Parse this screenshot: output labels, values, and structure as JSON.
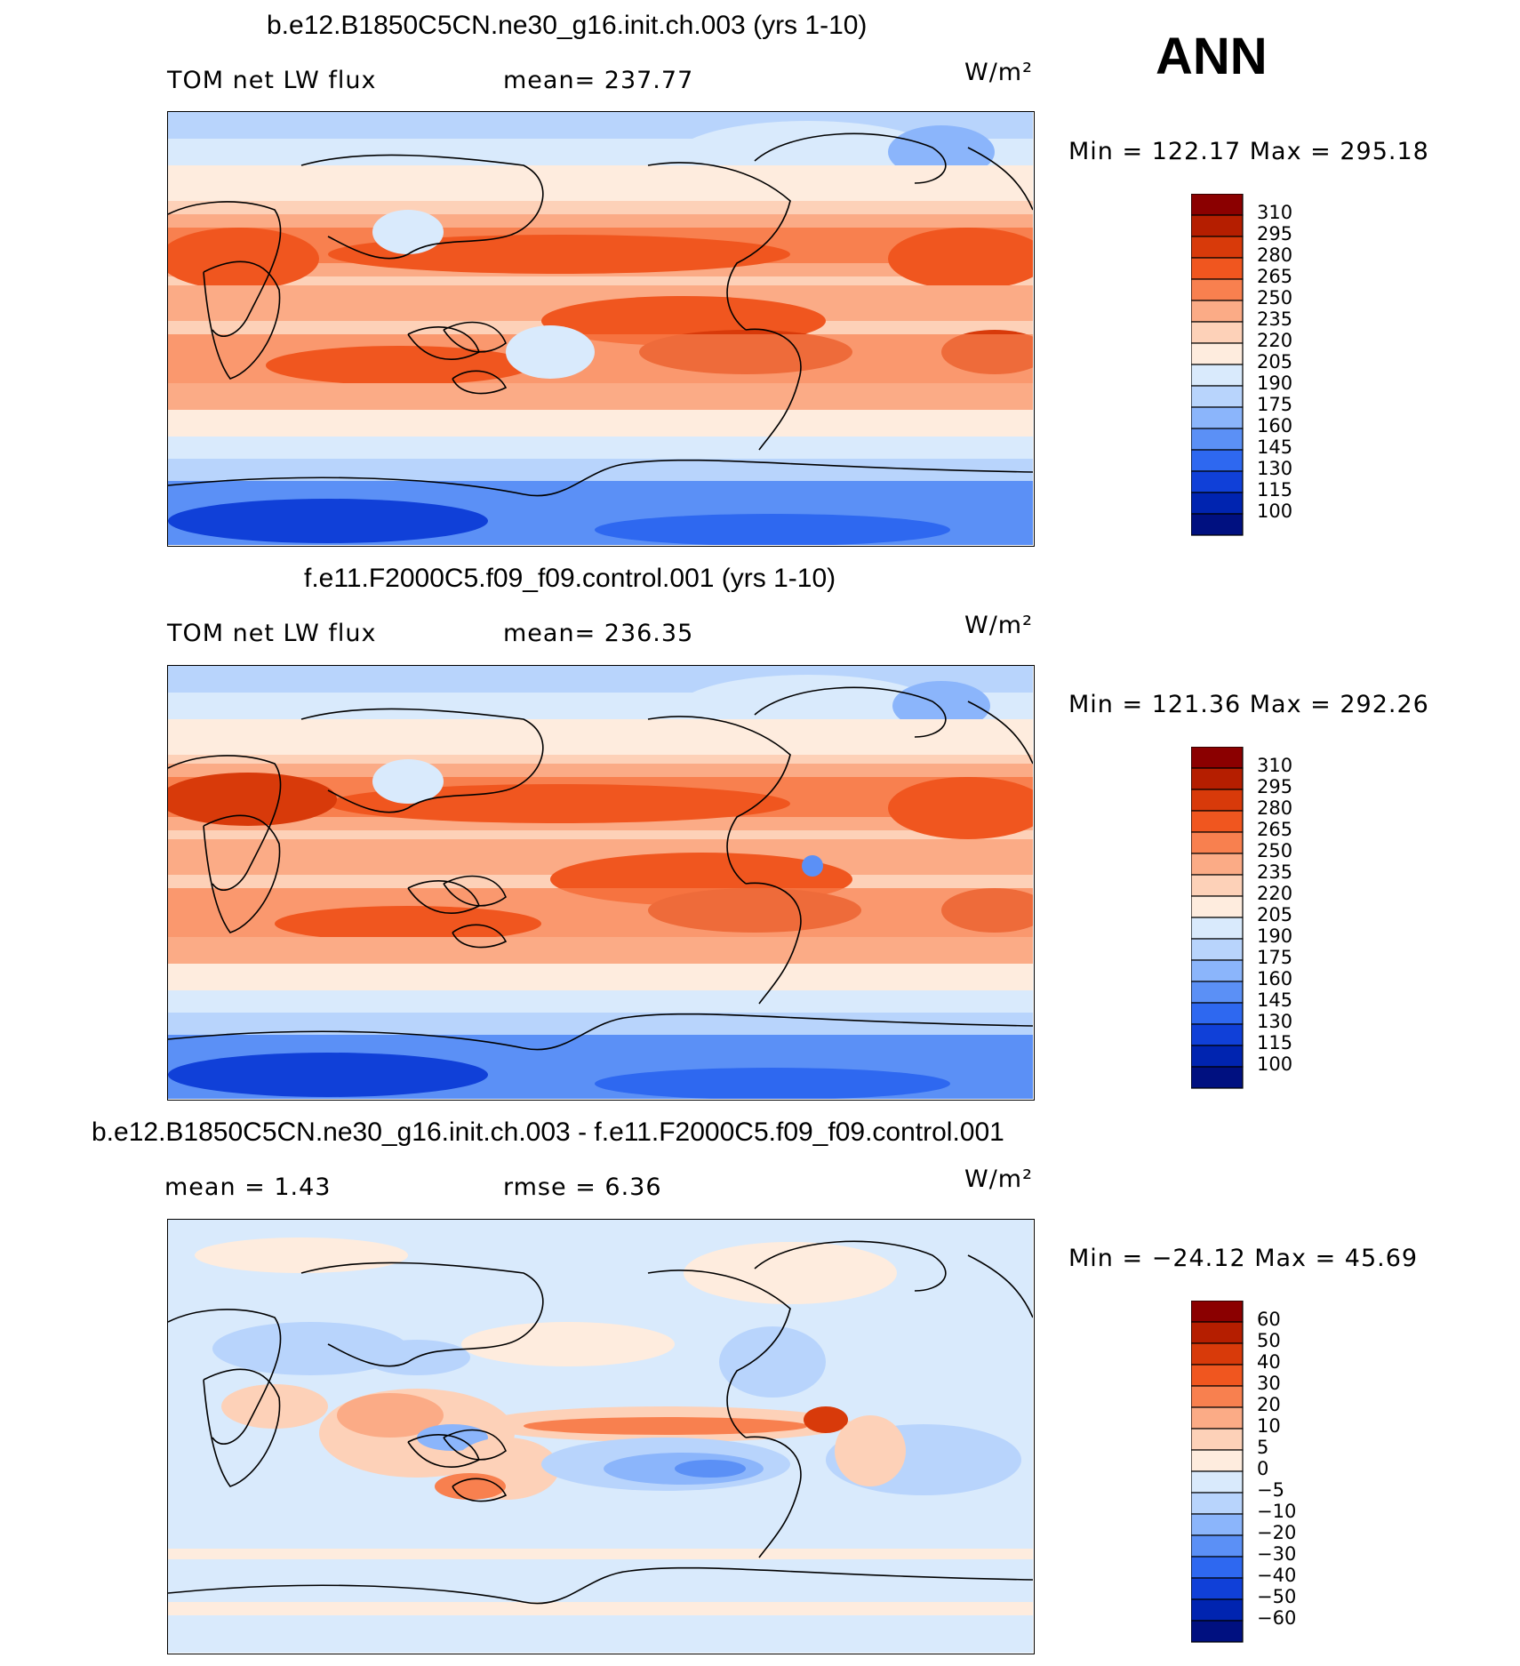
{
  "season": "ANN",
  "panels": [
    {
      "title": "b.e12.B1850C5CN.ne30_g16.init.ch.003 (yrs 1-10)",
      "left_label": "TOM net LW flux",
      "center_label": "mean= 237.77",
      "units": "W/m²",
      "minmax": "Min = 122.17 Max = 295.18",
      "colorbar_labels": [
        "310",
        "295",
        "280",
        "265",
        "250",
        "235",
        "220",
        "205",
        "190",
        "175",
        "160",
        "145",
        "130",
        "115",
        "100"
      ]
    },
    {
      "title": "f.e11.F2000C5.f09_f09.control.001 (yrs 1-10)",
      "left_label": "TOM net LW flux",
      "center_label": "mean= 236.35",
      "units": "W/m²",
      "minmax": "Min = 121.36 Max = 292.26",
      "colorbar_labels": [
        "310",
        "295",
        "280",
        "265",
        "250",
        "235",
        "220",
        "205",
        "190",
        "175",
        "160",
        "145",
        "130",
        "115",
        "100"
      ]
    },
    {
      "title": "b.e12.B1850C5CN.ne30_g16.init.ch.003 - f.e11.F2000C5.f09_f09.control.001",
      "left_label": "mean =    1.43",
      "center_label": "rmse =    6.36",
      "units": "W/m²",
      "minmax": "Min = −24.12 Max =   45.69",
      "colorbar_labels": [
        "60",
        "50",
        "40",
        "30",
        "20",
        "10",
        "5",
        "0",
        "−5",
        "−10",
        "−20",
        "−30",
        "−40",
        "−50",
        "−60"
      ]
    }
  ],
  "colors": {
    "scale": [
      "#8b0000",
      "#b51e00",
      "#d83a0a",
      "#f0561f",
      "#f8804f",
      "#fbab86",
      "#fdd1b8",
      "#feecde",
      "#d9eafc",
      "#b8d4fc",
      "#8bb5fb",
      "#5b90f6",
      "#2e68f0",
      "#1040d8",
      "#0024b0",
      "#001080"
    ]
  }
}
